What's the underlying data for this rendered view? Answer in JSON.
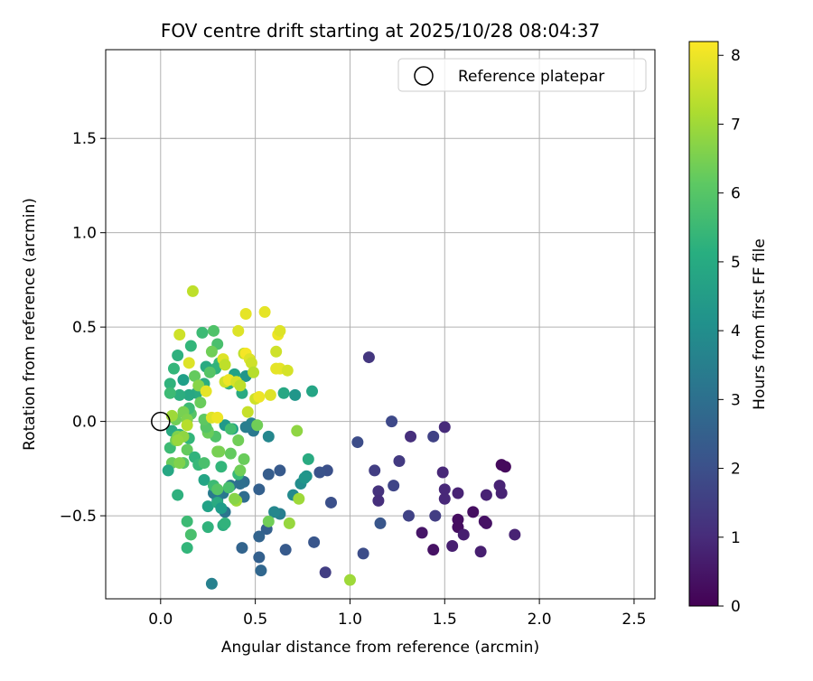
{
  "chart_data": {
    "type": "scatter",
    "title": "FOV centre drift starting at 2025/10/28 08:04:37",
    "xlabel": "Angular distance from reference (arcmin)",
    "ylabel": "Rotation from reference (arcmin)",
    "xlim": [
      -0.29,
      2.61
    ],
    "ylim": [
      -0.94,
      1.97
    ],
    "xticks": [
      0.0,
      0.5,
      1.0,
      1.5,
      2.0,
      2.5
    ],
    "xtick_labels": [
      "0.0",
      "0.5",
      "1.0",
      "1.5",
      "2.0",
      "2.5"
    ],
    "yticks": [
      -0.5,
      0.0,
      0.5,
      1.0,
      1.5
    ],
    "ytick_labels": [
      "−0.5",
      "0.0",
      "0.5",
      "1.0",
      "1.5"
    ],
    "grid": true,
    "legend": {
      "position": "top-right",
      "entries": [
        "Reference platepar"
      ]
    },
    "reference_point": {
      "x": 0.0,
      "y": 0.0,
      "label": "Reference platepar"
    },
    "colorbar": {
      "label": "Hours from first FF file",
      "min": 0,
      "max": 8.2,
      "ticks": [
        0,
        1,
        2,
        3,
        4,
        5,
        6,
        7,
        8
      ],
      "tick_labels": [
        "0",
        "1",
        "2",
        "3",
        "4",
        "5",
        "6",
        "7",
        "8"
      ],
      "colormap": "viridis"
    },
    "points": [
      {
        "x": 1.8,
        "y": -0.23,
        "c": 0.2
      },
      {
        "x": 1.82,
        "y": -0.24,
        "c": 0.2
      },
      {
        "x": 1.65,
        "y": -0.48,
        "c": 0.3
      },
      {
        "x": 1.57,
        "y": -0.52,
        "c": 0.3
      },
      {
        "x": 1.57,
        "y": -0.56,
        "c": 0.3
      },
      {
        "x": 1.71,
        "y": -0.53,
        "c": 0.4
      },
      {
        "x": 1.72,
        "y": -0.54,
        "c": 0.4
      },
      {
        "x": 1.44,
        "y": -0.68,
        "c": 0.4
      },
      {
        "x": 1.38,
        "y": -0.59,
        "c": 0.5
      },
      {
        "x": 1.54,
        "y": -0.66,
        "c": 0.7
      },
      {
        "x": 1.6,
        "y": -0.6,
        "c": 0.7
      },
      {
        "x": 1.69,
        "y": -0.69,
        "c": 0.7
      },
      {
        "x": 1.87,
        "y": -0.6,
        "c": 0.8
      },
      {
        "x": 1.79,
        "y": -0.34,
        "c": 0.8
      },
      {
        "x": 1.8,
        "y": -0.38,
        "c": 0.8
      },
      {
        "x": 1.72,
        "y": -0.39,
        "c": 0.8
      },
      {
        "x": 1.57,
        "y": -0.38,
        "c": 0.8
      },
      {
        "x": 1.5,
        "y": -0.36,
        "c": 0.9
      },
      {
        "x": 1.5,
        "y": -0.41,
        "c": 0.9
      },
      {
        "x": 1.49,
        "y": -0.27,
        "c": 0.9
      },
      {
        "x": 1.5,
        "y": -0.03,
        "c": 1.0
      },
      {
        "x": 1.32,
        "y": -0.08,
        "c": 1.1
      },
      {
        "x": 1.15,
        "y": -0.37,
        "c": 1.2
      },
      {
        "x": 1.15,
        "y": -0.42,
        "c": 1.1
      },
      {
        "x": 1.26,
        "y": -0.21,
        "c": 1.4
      },
      {
        "x": 1.44,
        "y": -0.08,
        "c": 1.6
      },
      {
        "x": 1.45,
        "y": -0.5,
        "c": 1.5
      },
      {
        "x": 1.31,
        "y": -0.5,
        "c": 1.6
      },
      {
        "x": 1.13,
        "y": -0.26,
        "c": 1.5
      },
      {
        "x": 1.1,
        "y": 0.34,
        "c": 1.3
      },
      {
        "x": 1.22,
        "y": 0.0,
        "c": 1.8
      },
      {
        "x": 1.04,
        "y": -0.11,
        "c": 1.9
      },
      {
        "x": 1.23,
        "y": -0.34,
        "c": 1.7
      },
      {
        "x": 1.16,
        "y": -0.54,
        "c": 2.2
      },
      {
        "x": 1.07,
        "y": -0.7,
        "c": 1.9
      },
      {
        "x": 0.87,
        "y": -0.8,
        "c": 1.5
      },
      {
        "x": 0.9,
        "y": -0.43,
        "c": 2.0
      },
      {
        "x": 0.88,
        "y": -0.26,
        "c": 2.0
      },
      {
        "x": 0.84,
        "y": -0.27,
        "c": 2.1
      },
      {
        "x": 0.81,
        "y": -0.64,
        "c": 2.2
      },
      {
        "x": 0.66,
        "y": -0.68,
        "c": 2.3
      },
      {
        "x": 0.63,
        "y": -0.26,
        "c": 2.3
      },
      {
        "x": 0.57,
        "y": -0.28,
        "c": 2.4
      },
      {
        "x": 0.52,
        "y": -0.36,
        "c": 2.5
      },
      {
        "x": 0.56,
        "y": -0.57,
        "c": 2.5
      },
      {
        "x": 0.52,
        "y": -0.61,
        "c": 2.6
      },
      {
        "x": 0.52,
        "y": -0.72,
        "c": 2.5
      },
      {
        "x": 0.53,
        "y": -0.79,
        "c": 2.7
      },
      {
        "x": 0.43,
        "y": -0.67,
        "c": 2.6
      },
      {
        "x": 0.44,
        "y": -0.32,
        "c": 2.9
      },
      {
        "x": 0.42,
        "y": -0.33,
        "c": 3.0
      },
      {
        "x": 0.44,
        "y": -0.4,
        "c": 2.9
      },
      {
        "x": 0.37,
        "y": -0.34,
        "c": 3.1
      },
      {
        "x": 0.33,
        "y": -0.38,
        "c": 3.3
      },
      {
        "x": 0.3,
        "y": -0.42,
        "c": 3.5
      },
      {
        "x": 0.28,
        "y": -0.38,
        "c": 3.4
      },
      {
        "x": 0.34,
        "y": -0.48,
        "c": 3.2
      },
      {
        "x": 0.27,
        "y": -0.86,
        "c": 3.6
      },
      {
        "x": 0.63,
        "y": -0.49,
        "c": 3.5
      },
      {
        "x": 0.6,
        "y": -0.48,
        "c": 3.8
      },
      {
        "x": 0.7,
        "y": -0.39,
        "c": 3.9
      },
      {
        "x": 0.74,
        "y": -0.33,
        "c": 4.0
      },
      {
        "x": 0.77,
        "y": -0.29,
        "c": 4.2
      },
      {
        "x": 0.76,
        "y": -0.3,
        "c": 4.3
      },
      {
        "x": 0.57,
        "y": -0.08,
        "c": 3.8
      },
      {
        "x": 0.48,
        "y": -0.01,
        "c": 3.6
      },
      {
        "x": 0.49,
        "y": -0.05,
        "c": 3.3
      },
      {
        "x": 0.45,
        "y": -0.03,
        "c": 3.5
      },
      {
        "x": 0.38,
        "y": -0.04,
        "c": 4.6
      },
      {
        "x": 0.34,
        "y": -0.02,
        "c": 4.4
      },
      {
        "x": 0.71,
        "y": 0.14,
        "c": 4.3
      },
      {
        "x": 0.8,
        "y": 0.16,
        "c": 4.8
      },
      {
        "x": 0.78,
        "y": -0.2,
        "c": 5.0
      },
      {
        "x": 0.65,
        "y": 0.15,
        "c": 4.9
      },
      {
        "x": 0.45,
        "y": 0.24,
        "c": 4.3
      },
      {
        "x": 0.39,
        "y": 0.25,
        "c": 4.7
      },
      {
        "x": 0.43,
        "y": 0.15,
        "c": 5.0
      },
      {
        "x": 0.36,
        "y": 0.2,
        "c": 5.2
      },
      {
        "x": 0.31,
        "y": 0.31,
        "c": 5.5
      },
      {
        "x": 0.29,
        "y": 0.28,
        "c": 5.3
      },
      {
        "x": 0.24,
        "y": 0.29,
        "c": 5.0
      },
      {
        "x": 0.23,
        "y": 0.2,
        "c": 5.1
      },
      {
        "x": 0.19,
        "y": 0.15,
        "c": 5.0
      },
      {
        "x": 0.15,
        "y": 0.14,
        "c": 4.9
      },
      {
        "x": 0.12,
        "y": 0.22,
        "c": 4.6
      },
      {
        "x": 0.1,
        "y": 0.14,
        "c": 5.1
      },
      {
        "x": 0.05,
        "y": 0.2,
        "c": 5.3
      },
      {
        "x": 0.05,
        "y": 0.15,
        "c": 5.6
      },
      {
        "x": 0.07,
        "y": 0.28,
        "c": 5.4
      },
      {
        "x": 0.09,
        "y": 0.35,
        "c": 5.2
      },
      {
        "x": 0.16,
        "y": 0.4,
        "c": 5.4
      },
      {
        "x": 0.22,
        "y": 0.47,
        "c": 5.6
      },
      {
        "x": 0.28,
        "y": 0.48,
        "c": 5.9
      },
      {
        "x": 0.3,
        "y": 0.41,
        "c": 5.8
      },
      {
        "x": 0.27,
        "y": 0.37,
        "c": 6.4
      },
      {
        "x": 0.26,
        "y": 0.26,
        "c": 6.0
      },
      {
        "x": 0.18,
        "y": 0.24,
        "c": 6.2
      },
      {
        "x": 0.21,
        "y": 0.1,
        "c": 6.3
      },
      {
        "x": 0.16,
        "y": 0.04,
        "c": 6.0
      },
      {
        "x": 0.15,
        "y": 0.07,
        "c": 5.6
      },
      {
        "x": 0.08,
        "y": 0.01,
        "c": 6.4
      },
      {
        "x": 0.12,
        "y": 0.05,
        "c": 6.5
      },
      {
        "x": 0.14,
        "y": 0.01,
        "c": 6.6
      },
      {
        "x": 0.06,
        "y": -0.05,
        "c": 5.0
      },
      {
        "x": 0.1,
        "y": -0.07,
        "c": 5.2
      },
      {
        "x": 0.15,
        "y": -0.09,
        "c": 5.4
      },
      {
        "x": 0.05,
        "y": -0.14,
        "c": 5.6
      },
      {
        "x": 0.08,
        "y": -0.1,
        "c": 6.4
      },
      {
        "x": 0.09,
        "y": -0.08,
        "c": 6.6
      },
      {
        "x": 0.12,
        "y": -0.08,
        "c": 6.8
      },
      {
        "x": 0.14,
        "y": -0.15,
        "c": 6.2
      },
      {
        "x": 0.12,
        "y": -0.22,
        "c": 6.0
      },
      {
        "x": 0.06,
        "y": -0.22,
        "c": 6.3
      },
      {
        "x": 0.1,
        "y": -0.22,
        "c": 6.6
      },
      {
        "x": 0.04,
        "y": -0.26,
        "c": 4.9
      },
      {
        "x": 0.09,
        "y": -0.39,
        "c": 5.2
      },
      {
        "x": 0.14,
        "y": -0.53,
        "c": 5.6
      },
      {
        "x": 0.16,
        "y": -0.6,
        "c": 5.8
      },
      {
        "x": 0.14,
        "y": -0.67,
        "c": 5.4
      },
      {
        "x": 0.18,
        "y": -0.19,
        "c": 5.3
      },
      {
        "x": 0.2,
        "y": -0.23,
        "c": 5.5
      },
      {
        "x": 0.23,
        "y": -0.22,
        "c": 5.8
      },
      {
        "x": 0.23,
        "y": -0.31,
        "c": 4.8
      },
      {
        "x": 0.25,
        "y": -0.45,
        "c": 4.7
      },
      {
        "x": 0.25,
        "y": -0.56,
        "c": 5.3
      },
      {
        "x": 0.3,
        "y": -0.43,
        "c": 5.0
      },
      {
        "x": 0.33,
        "y": -0.55,
        "c": 5.1
      },
      {
        "x": 0.34,
        "y": -0.54,
        "c": 5.3
      },
      {
        "x": 0.32,
        "y": -0.46,
        "c": 4.5
      },
      {
        "x": 0.28,
        "y": -0.34,
        "c": 5.6
      },
      {
        "x": 0.3,
        "y": -0.36,
        "c": 6.0
      },
      {
        "x": 0.32,
        "y": -0.24,
        "c": 5.4
      },
      {
        "x": 0.36,
        "y": -0.35,
        "c": 5.8
      },
      {
        "x": 0.41,
        "y": -0.28,
        "c": 5.5
      },
      {
        "x": 0.42,
        "y": -0.26,
        "c": 6.4
      },
      {
        "x": 0.44,
        "y": -0.2,
        "c": 6.3
      },
      {
        "x": 0.41,
        "y": -0.1,
        "c": 6.4
      },
      {
        "x": 0.37,
        "y": -0.17,
        "c": 6.2
      },
      {
        "x": 0.37,
        "y": -0.04,
        "c": 5.7
      },
      {
        "x": 0.31,
        "y": -0.16,
        "c": 6.5
      },
      {
        "x": 0.29,
        "y": -0.08,
        "c": 5.9
      },
      {
        "x": 0.25,
        "y": -0.05,
        "c": 6.1
      },
      {
        "x": 0.25,
        "y": -0.06,
        "c": 6.3
      },
      {
        "x": 0.24,
        "y": -0.03,
        "c": 6.0
      },
      {
        "x": 0.23,
        "y": 0.01,
        "c": 6.1
      },
      {
        "x": 0.14,
        "y": -0.02,
        "c": 7.3
      },
      {
        "x": 0.2,
        "y": 0.19,
        "c": 6.7
      },
      {
        "x": 0.24,
        "y": 0.16,
        "c": 7.9
      },
      {
        "x": 0.33,
        "y": 0.33,
        "c": 7.8
      },
      {
        "x": 0.34,
        "y": 0.3,
        "c": 7.4
      },
      {
        "x": 0.34,
        "y": 0.21,
        "c": 7.6
      },
      {
        "x": 0.36,
        "y": 0.22,
        "c": 8.0
      },
      {
        "x": 0.4,
        "y": 0.21,
        "c": 7.7
      },
      {
        "x": 0.42,
        "y": 0.19,
        "c": 7.4
      },
      {
        "x": 0.41,
        "y": 0.48,
        "c": 7.8
      },
      {
        "x": 0.44,
        "y": 0.36,
        "c": 7.4
      },
      {
        "x": 0.45,
        "y": 0.57,
        "c": 7.9
      },
      {
        "x": 0.45,
        "y": 0.36,
        "c": 8.1
      },
      {
        "x": 0.47,
        "y": 0.33,
        "c": 7.8
      },
      {
        "x": 0.48,
        "y": 0.31,
        "c": 7.6
      },
      {
        "x": 0.49,
        "y": 0.26,
        "c": 7.3
      },
      {
        "x": 0.5,
        "y": 0.12,
        "c": 7.6
      },
      {
        "x": 0.46,
        "y": 0.05,
        "c": 7.5
      },
      {
        "x": 0.52,
        "y": 0.13,
        "c": 8.0
      },
      {
        "x": 0.58,
        "y": 0.14,
        "c": 7.8
      },
      {
        "x": 0.55,
        "y": 0.58,
        "c": 7.9
      },
      {
        "x": 0.62,
        "y": 0.46,
        "c": 8.0
      },
      {
        "x": 0.63,
        "y": 0.48,
        "c": 7.8
      },
      {
        "x": 0.61,
        "y": 0.37,
        "c": 7.6
      },
      {
        "x": 0.61,
        "y": 0.28,
        "c": 7.9
      },
      {
        "x": 0.63,
        "y": 0.28,
        "c": 7.9
      },
      {
        "x": 0.67,
        "y": 0.27,
        "c": 7.7
      },
      {
        "x": 0.17,
        "y": 0.69,
        "c": 7.4
      },
      {
        "x": 0.1,
        "y": 0.46,
        "c": 7.6
      },
      {
        "x": 0.15,
        "y": 0.31,
        "c": 7.8
      },
      {
        "x": 0.27,
        "y": 0.02,
        "c": 7.8
      },
      {
        "x": 0.3,
        "y": 0.02,
        "c": 8.0
      },
      {
        "x": 0.51,
        "y": -0.02,
        "c": 6.4
      },
      {
        "x": 0.72,
        "y": -0.05,
        "c": 6.8
      },
      {
        "x": 0.73,
        "y": -0.41,
        "c": 7.0
      },
      {
        "x": 0.68,
        "y": -0.54,
        "c": 6.9
      },
      {
        "x": 0.57,
        "y": -0.53,
        "c": 6.4
      },
      {
        "x": 0.4,
        "y": -0.42,
        "c": 7.0
      },
      {
        "x": 0.39,
        "y": -0.41,
        "c": 6.7
      },
      {
        "x": 0.3,
        "y": -0.16,
        "c": 6.5
      },
      {
        "x": 0.06,
        "y": 0.03,
        "c": 7.0
      },
      {
        "x": 0.09,
        "y": -0.1,
        "c": 6.9
      },
      {
        "x": 1.0,
        "y": -0.84,
        "c": 7.0
      }
    ]
  }
}
